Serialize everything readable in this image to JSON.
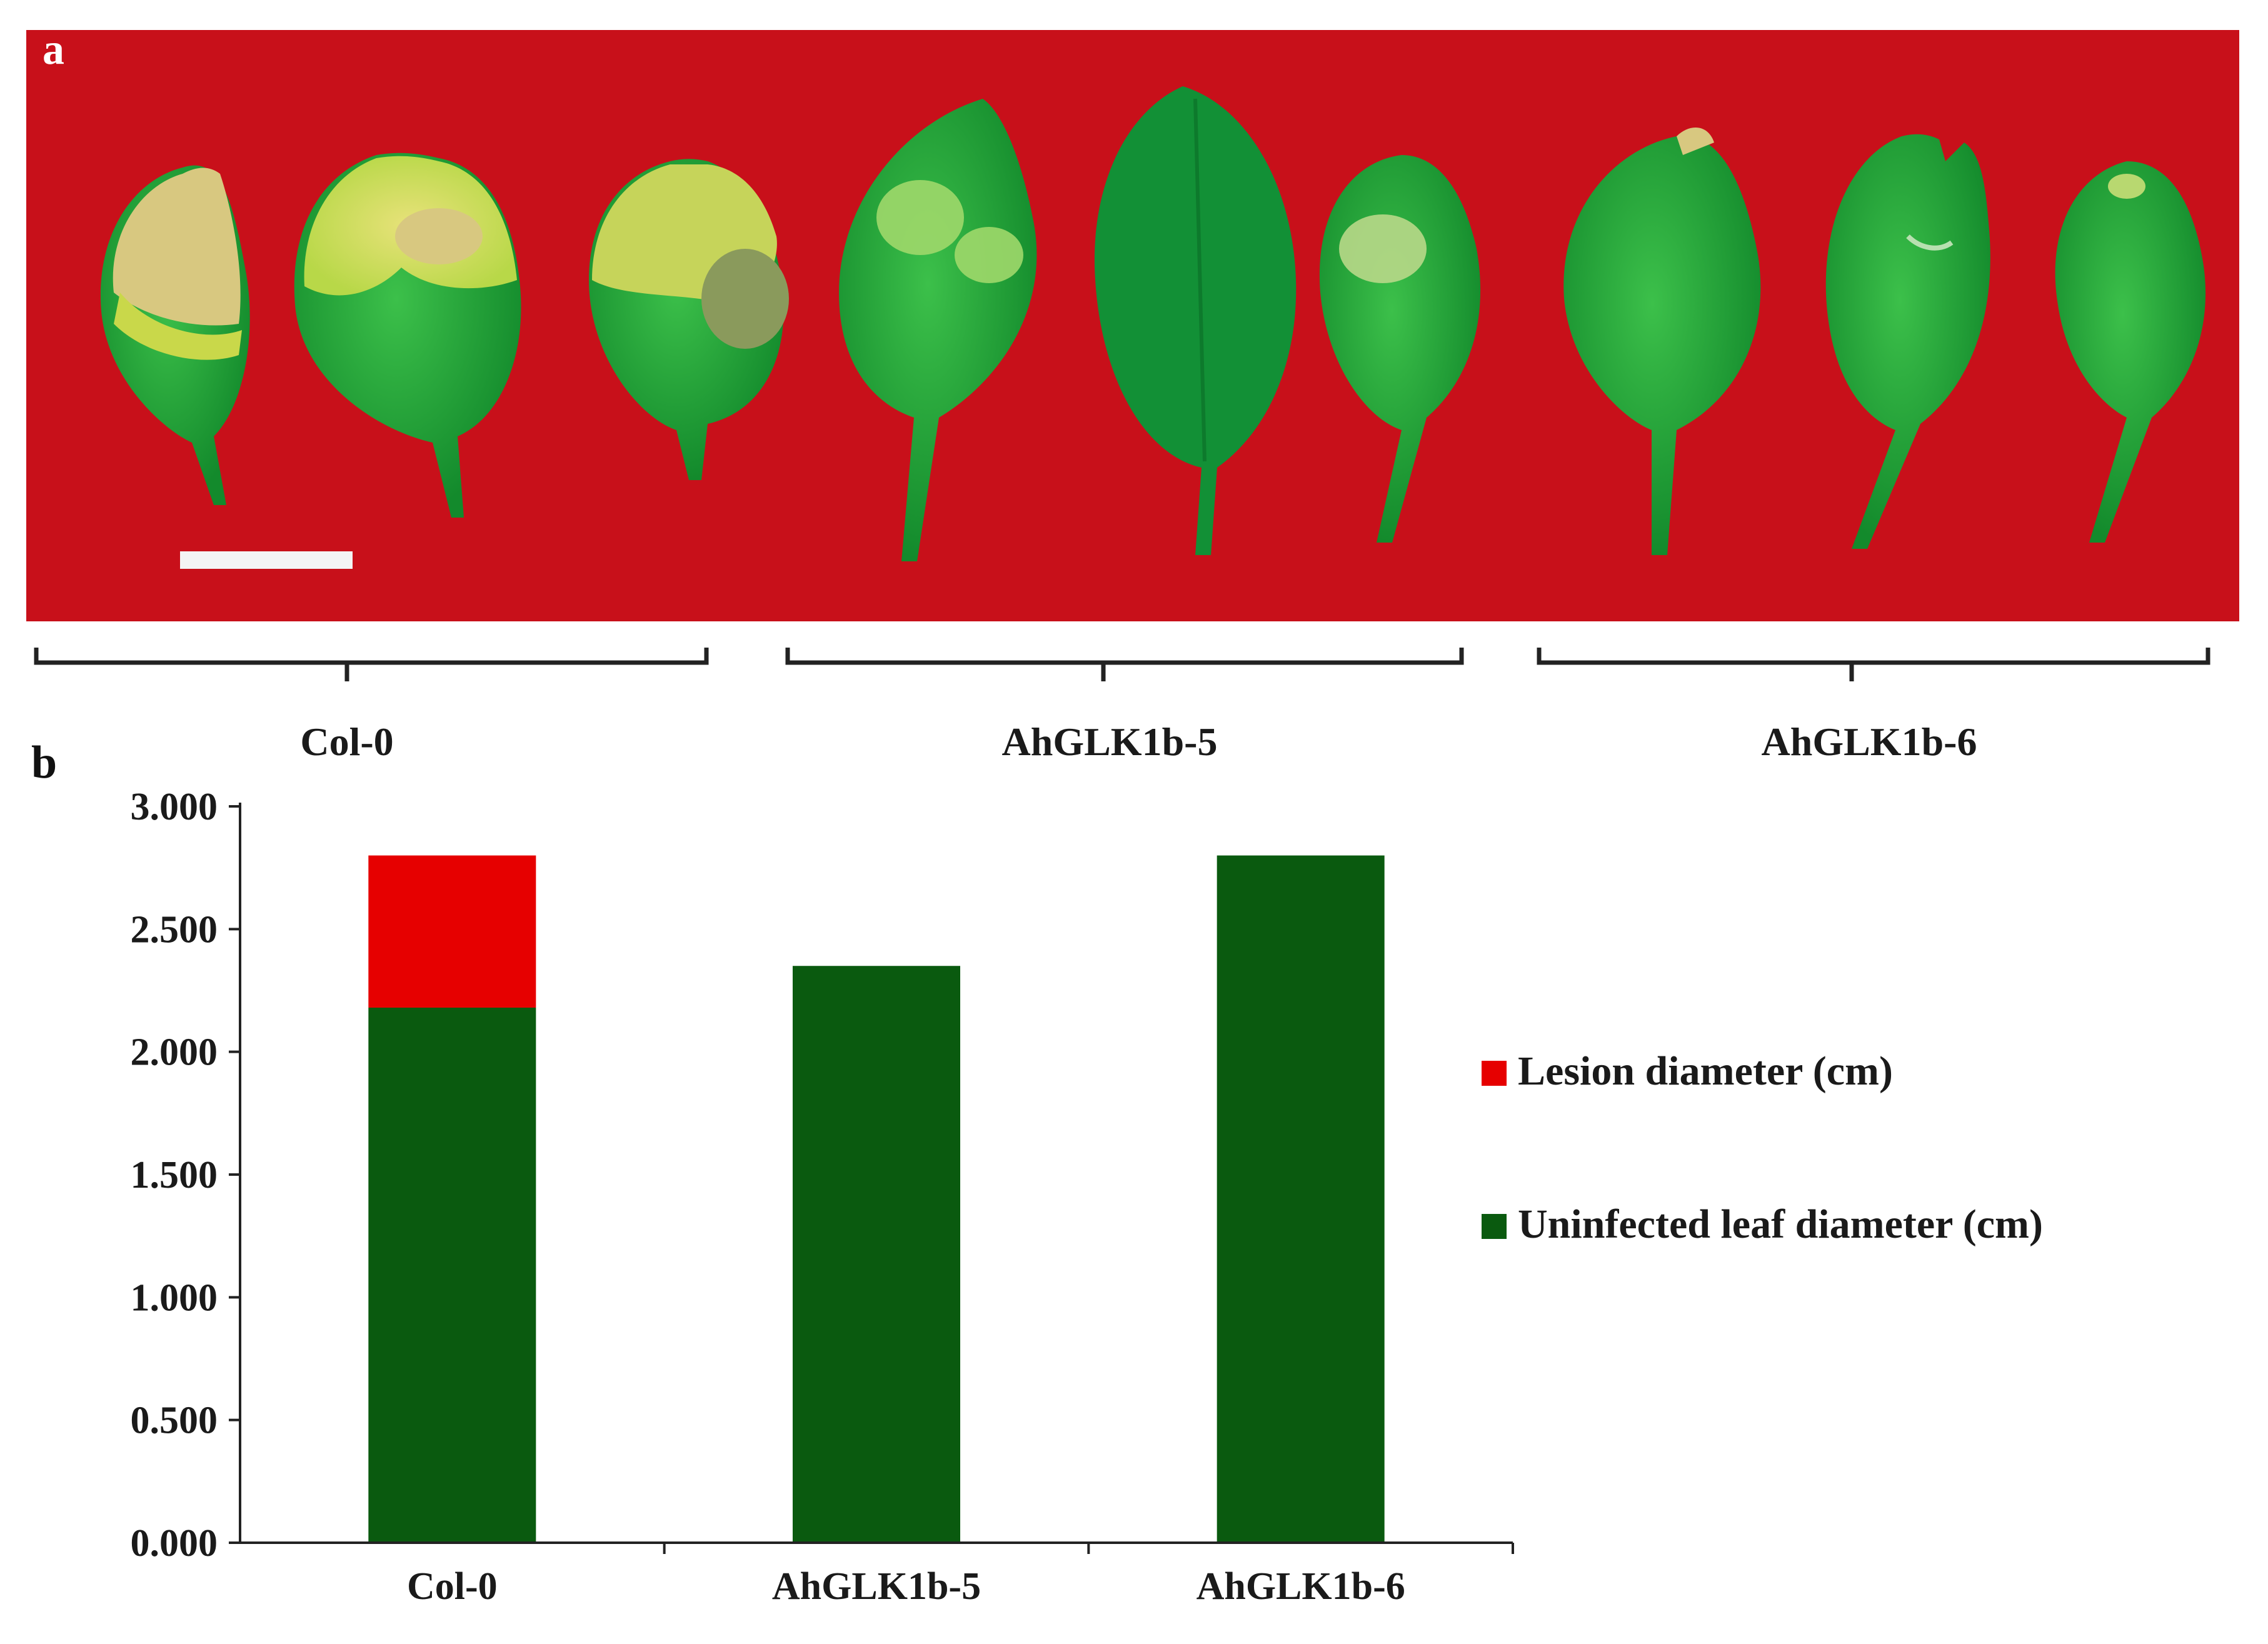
{
  "panel_labels": {
    "a": "a",
    "b": "b"
  },
  "photo": {
    "background_color": "#c8101a",
    "groups": [
      "Col-0",
      "AhGLK1b-5",
      "AhGLK1b-6"
    ]
  },
  "chart_data": {
    "type": "bar",
    "stacked": true,
    "categories": [
      "Col-0",
      "AhGLK1b-5",
      "AhGLK1b-6"
    ],
    "series": [
      {
        "name": "Uninfected leaf diameter (cm)",
        "color": "#0a5a0f",
        "values": [
          2.18,
          2.35,
          2.8
        ]
      },
      {
        "name": "Lesion diameter (cm)",
        "color": "#e60000",
        "values": [
          0.62,
          0,
          0
        ]
      }
    ],
    "yticks": [
      "0.000",
      "0.500",
      "1.000",
      "1.500",
      "2.000",
      "2.500",
      "3.000"
    ],
    "ylim": [
      0,
      3
    ],
    "legend_position": "right",
    "grid": false
  }
}
